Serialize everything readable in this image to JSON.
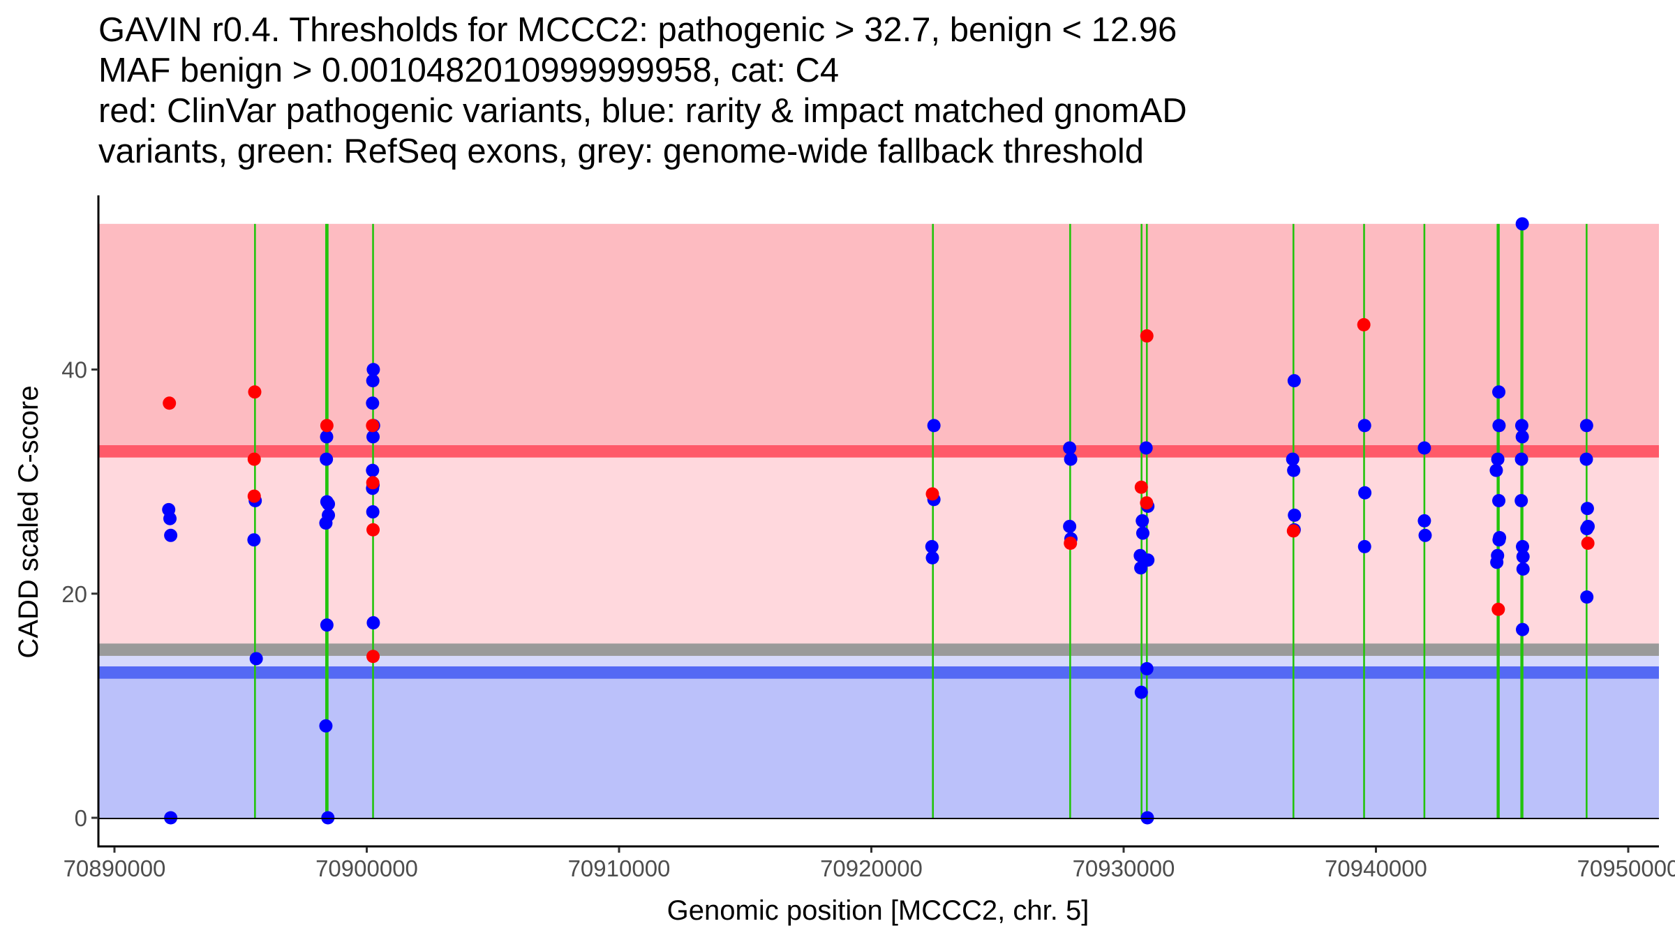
{
  "chart_data": {
    "type": "scatter",
    "title_lines": [
      "GAVIN r0.4. Thresholds for MCCC2: pathogenic > 32.7, benign < 12.96",
      "MAF benign > 0.0010482010999999958, cat: C4",
      "red: ClinVar pathogenic variants, blue: rarity & impact matched gnomAD",
      "variants, green: RefSeq exons, grey: genome-wide fallback threshold"
    ],
    "xlabel": "Genomic position [MCCC2, chr. 5]",
    "ylabel": "CADD scaled C-score",
    "xlim": [
      70889900,
      70951500
    ],
    "ylim": [
      -1.5,
      55.5
    ],
    "x_ticks": [
      70890000,
      70900000,
      70910000,
      70920000,
      70930000,
      70940000,
      70950000
    ],
    "x_tick_labels": [
      "70890000",
      "70900000",
      "70910000",
      "70920000",
      "70930000",
      "70940000",
      "70950000"
    ],
    "y_ticks": [
      0,
      20,
      40
    ],
    "y_tick_labels": [
      "0",
      "20",
      "40"
    ],
    "grid": false,
    "thresholds": {
      "pathogenic": 32.7,
      "benign": 12.96,
      "fallback": 15.0,
      "max_score": 53.0
    },
    "colors": {
      "pathogenic_region": "#FDBBC1",
      "middle_region": "#FFD8DD",
      "pathogenic_line": "#FF5A69",
      "fallback_line": "#9A9A9A",
      "benign_light": "#D6D9FC",
      "benign_line": "#5469F4",
      "benign_region": "#BBC1FA",
      "exon": "#22C40C",
      "clinvar": "#FF0000",
      "gnomad": "#0000FF"
    },
    "exons": [
      70895570,
      70898390,
      70898450,
      70900250,
      70922440,
      70927880,
      70930710,
      70930920,
      70936730,
      70939530,
      70941920,
      70944820,
      70944870,
      70945760,
      70945810,
      70948350
    ],
    "series": [
      {
        "name": "ClinVar pathogenic variants",
        "color": "red",
        "points": [
          [
            70892177,
            37.0
          ],
          [
            70895560,
            38.0
          ],
          [
            70895540,
            32.0
          ],
          [
            70895540,
            28.7
          ],
          [
            70898420,
            35.0
          ],
          [
            70900230,
            35.0
          ],
          [
            70900240,
            29.9
          ],
          [
            70900250,
            25.7
          ],
          [
            70900250,
            14.4
          ],
          [
            70922420,
            28.9
          ],
          [
            70927890,
            24.5
          ],
          [
            70930920,
            43.0
          ],
          [
            70930700,
            29.5
          ],
          [
            70930910,
            28.1
          ],
          [
            70936730,
            25.6
          ],
          [
            70939520,
            44.0
          ],
          [
            70944850,
            18.6
          ],
          [
            70948400,
            24.5
          ]
        ]
      },
      {
        "name": "gnomAD rarity & impact matched variants",
        "color": "blue",
        "points": [
          [
            70892150,
            27.5
          ],
          [
            70892200,
            26.7
          ],
          [
            70892230,
            25.2
          ],
          [
            70892230,
            0.0
          ],
          [
            70895580,
            28.3
          ],
          [
            70895530,
            24.8
          ],
          [
            70895620,
            14.2
          ],
          [
            70898410,
            34.0
          ],
          [
            70898400,
            32.0
          ],
          [
            70898420,
            28.2
          ],
          [
            70898480,
            28.0
          ],
          [
            70898480,
            27.0
          ],
          [
            70898380,
            26.3
          ],
          [
            70898420,
            17.2
          ],
          [
            70898380,
            8.2
          ],
          [
            70898460,
            0.0
          ],
          [
            70900260,
            40.0
          ],
          [
            70900240,
            39.0
          ],
          [
            70900230,
            37.0
          ],
          [
            70900270,
            35.0
          ],
          [
            70900250,
            34.0
          ],
          [
            70900230,
            31.0
          ],
          [
            70900250,
            29.7
          ],
          [
            70900230,
            29.4
          ],
          [
            70900240,
            27.3
          ],
          [
            70900260,
            17.4
          ],
          [
            70922480,
            35.0
          ],
          [
            70922480,
            28.4
          ],
          [
            70922400,
            24.2
          ],
          [
            70922420,
            23.2
          ],
          [
            70927860,
            33.0
          ],
          [
            70927900,
            32.0
          ],
          [
            70927860,
            26.0
          ],
          [
            70927910,
            24.9
          ],
          [
            70930890,
            33.0
          ],
          [
            70930960,
            27.8
          ],
          [
            70930740,
            26.5
          ],
          [
            70930760,
            25.4
          ],
          [
            70930660,
            23.4
          ],
          [
            70930960,
            23.0
          ],
          [
            70930680,
            22.3
          ],
          [
            70930920,
            13.3
          ],
          [
            70930700,
            11.2
          ],
          [
            70930940,
            0.0
          ],
          [
            70936760,
            39.0
          ],
          [
            70936700,
            32.0
          ],
          [
            70936740,
            31.0
          ],
          [
            70936770,
            27.0
          ],
          [
            70936760,
            25.7
          ],
          [
            70939550,
            35.0
          ],
          [
            70939560,
            29.0
          ],
          [
            70939550,
            24.2
          ],
          [
            70941920,
            33.0
          ],
          [
            70941920,
            26.5
          ],
          [
            70941950,
            25.2
          ],
          [
            70944870,
            38.0
          ],
          [
            70944880,
            35.0
          ],
          [
            70944830,
            32.0
          ],
          [
            70944770,
            31.0
          ],
          [
            70944870,
            28.3
          ],
          [
            70944900,
            25.0
          ],
          [
            70944880,
            24.8
          ],
          [
            70944820,
            23.4
          ],
          [
            70944790,
            22.8
          ],
          [
            70945800,
            53.0
          ],
          [
            70945780,
            35.0
          ],
          [
            70945800,
            34.0
          ],
          [
            70945770,
            32.0
          ],
          [
            70945760,
            28.3
          ],
          [
            70945810,
            24.2
          ],
          [
            70945830,
            23.3
          ],
          [
            70945830,
            22.2
          ],
          [
            70945810,
            16.8
          ],
          [
            70948350,
            35.0
          ],
          [
            70948340,
            32.0
          ],
          [
            70948380,
            27.6
          ],
          [
            70948410,
            26.0
          ],
          [
            70948360,
            25.8
          ],
          [
            70948360,
            19.7
          ]
        ]
      }
    ]
  }
}
